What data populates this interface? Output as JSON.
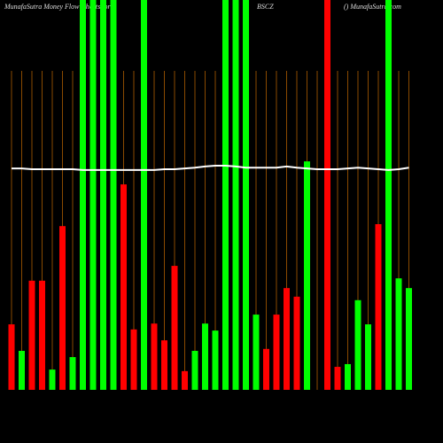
{
  "chart_data": {
    "type": "bar",
    "title": "MunafaSutra  Money Flow  Charts for",
    "symbol": "BSCZ",
    "source": "() MunafaSutra.com",
    "ylim": [
      0,
      100
    ],
    "grid": true,
    "grid_color": "#8a4a00",
    "values": [
      16.8,
      10,
      28,
      28,
      5.2,
      42,
      8.4,
      100,
      100,
      100,
      100,
      52.7,
      15.5,
      100,
      17,
      12.7,
      31.8,
      4.8,
      10,
      17,
      15.2,
      100,
      100,
      100,
      19.3,
      10.5,
      19.3,
      26.1,
      23.9,
      58.6,
      0,
      100,
      5.9,
      6.6,
      23,
      16.8,
      42.5,
      100,
      28.6,
      26.1
    ],
    "colors": [
      "#ff0000",
      "#00ff00",
      "#ff0000",
      "#ff0000",
      "#00ff00",
      "#ff0000",
      "#00ff00",
      "#00ff00",
      "#00ff00",
      "#00ff00",
      "#00ff00",
      "#ff0000",
      "#ff0000",
      "#00ff00",
      "#ff0000",
      "#ff0000",
      "#ff0000",
      "#ff0000",
      "#00ff00",
      "#00ff00",
      "#00ff00",
      "#00ff00",
      "#00ff00",
      "#00ff00",
      "#00ff00",
      "#ff0000",
      "#ff0000",
      "#ff0000",
      "#ff0000",
      "#00ff00",
      "#00ff00",
      "#ff0000",
      "#ff0000",
      "#00ff00",
      "#00ff00",
      "#00ff00",
      "#ff0000",
      "#00ff00",
      "#00ff00",
      "#00ff00"
    ],
    "line": {
      "color": "#ffffff",
      "values": [
        56.8,
        56.8,
        56.6,
        56.6,
        56.6,
        56.6,
        56.6,
        56.4,
        56.4,
        56.4,
        56.4,
        56.4,
        56.4,
        56.4,
        56.4,
        56.6,
        56.6,
        56.8,
        57.0,
        57.3,
        57.5,
        57.5,
        57.3,
        57.0,
        57.0,
        57.0,
        57.0,
        57.3,
        57.0,
        56.8,
        56.6,
        56.6,
        56.6,
        56.8,
        57.0,
        56.8,
        56.6,
        56.4,
        56.6,
        57.0
      ]
    }
  }
}
